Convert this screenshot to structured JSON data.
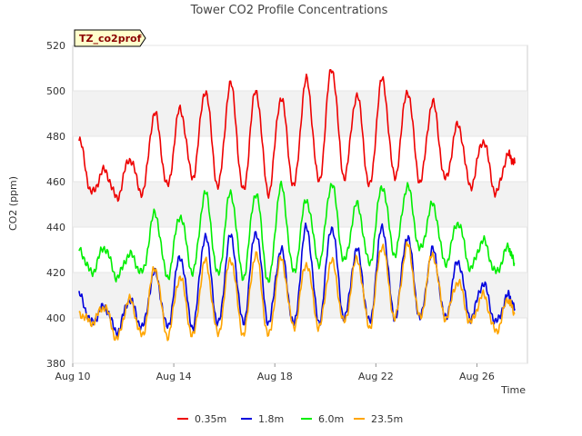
{
  "chart_data": {
    "type": "line",
    "title": "Tower CO2 Profile Concentrations",
    "xlabel": "Time",
    "ylabel": "CO2 (ppm)",
    "site_badge": "TZ_co2prof",
    "ylim": [
      380,
      520
    ],
    "yticks": [
      380,
      400,
      420,
      440,
      460,
      480,
      500,
      520
    ],
    "xlim": [
      "2023-08-10",
      "2023-08-28"
    ],
    "xticks": [
      {
        "date": "2023-08-10",
        "label": "Aug 10"
      },
      {
        "date": "2023-08-14",
        "label": "Aug 14"
      },
      {
        "date": "2023-08-18",
        "label": "Aug 18"
      },
      {
        "date": "2023-08-22",
        "label": "Aug 22"
      },
      {
        "date": "2023-08-26",
        "label": "Aug 26"
      }
    ],
    "grid": true,
    "legend_position": "bottom",
    "x": [
      "2023-08-10 06:00",
      "2023-08-10 18:00",
      "2023-08-11 06:00",
      "2023-08-11 18:00",
      "2023-08-12 06:00",
      "2023-08-12 18:00",
      "2023-08-13 06:00",
      "2023-08-13 18:00",
      "2023-08-14 06:00",
      "2023-08-14 18:00",
      "2023-08-15 06:00",
      "2023-08-15 18:00",
      "2023-08-16 06:00",
      "2023-08-16 18:00",
      "2023-08-17 06:00",
      "2023-08-17 18:00",
      "2023-08-18 06:00",
      "2023-08-18 18:00",
      "2023-08-19 06:00",
      "2023-08-19 18:00",
      "2023-08-20 06:00",
      "2023-08-20 18:00",
      "2023-08-21 06:00",
      "2023-08-21 18:00",
      "2023-08-22 06:00",
      "2023-08-22 18:00",
      "2023-08-23 06:00",
      "2023-08-23 18:00",
      "2023-08-24 06:00",
      "2023-08-24 18:00",
      "2023-08-25 06:00",
      "2023-08-25 18:00",
      "2023-08-26 06:00",
      "2023-08-26 18:00",
      "2023-08-27 06:00",
      "2023-08-27 12:00"
    ],
    "series": [
      {
        "name": "0.35m",
        "color": "#ee0000",
        "values": [
          478,
          455,
          465,
          453,
          470,
          455,
          490,
          458,
          492,
          462,
          500,
          458,
          503,
          456,
          500,
          455,
          497,
          458,
          505,
          460,
          510,
          462,
          498,
          458,
          505,
          462,
          500,
          460,
          495,
          461,
          485,
          458,
          478,
          455,
          472,
          468
        ]
      },
      {
        "name": "1.8m",
        "color": "#0000dd",
        "values": [
          410,
          398,
          405,
          394,
          408,
          396,
          420,
          396,
          427,
          396,
          436,
          397,
          436,
          398,
          438,
          398,
          430,
          397,
          440,
          398,
          440,
          400,
          430,
          398,
          440,
          400,
          436,
          400,
          430,
          400,
          425,
          400,
          415,
          398,
          410,
          404
        ]
      },
      {
        "name": "6.0m",
        "color": "#00ee00",
        "values": [
          430,
          420,
          431,
          418,
          428,
          420,
          446,
          418,
          445,
          420,
          455,
          419,
          455,
          418,
          455,
          416,
          458,
          420,
          452,
          424,
          459,
          425,
          450,
          424,
          458,
          428,
          458,
          430,
          450,
          424,
          442,
          422,
          434,
          420,
          431,
          424
        ]
      },
      {
        "name": "23.5m",
        "color": "#ffa500",
        "values": [
          402,
          398,
          405,
          391,
          408,
          392,
          422,
          392,
          418,
          392,
          425,
          393,
          426,
          393,
          428,
          392,
          426,
          396,
          424,
          396,
          425,
          398,
          426,
          396,
          432,
          400,
          432,
          400,
          428,
          400,
          416,
          398,
          410,
          394,
          408,
          402
        ]
      }
    ]
  }
}
